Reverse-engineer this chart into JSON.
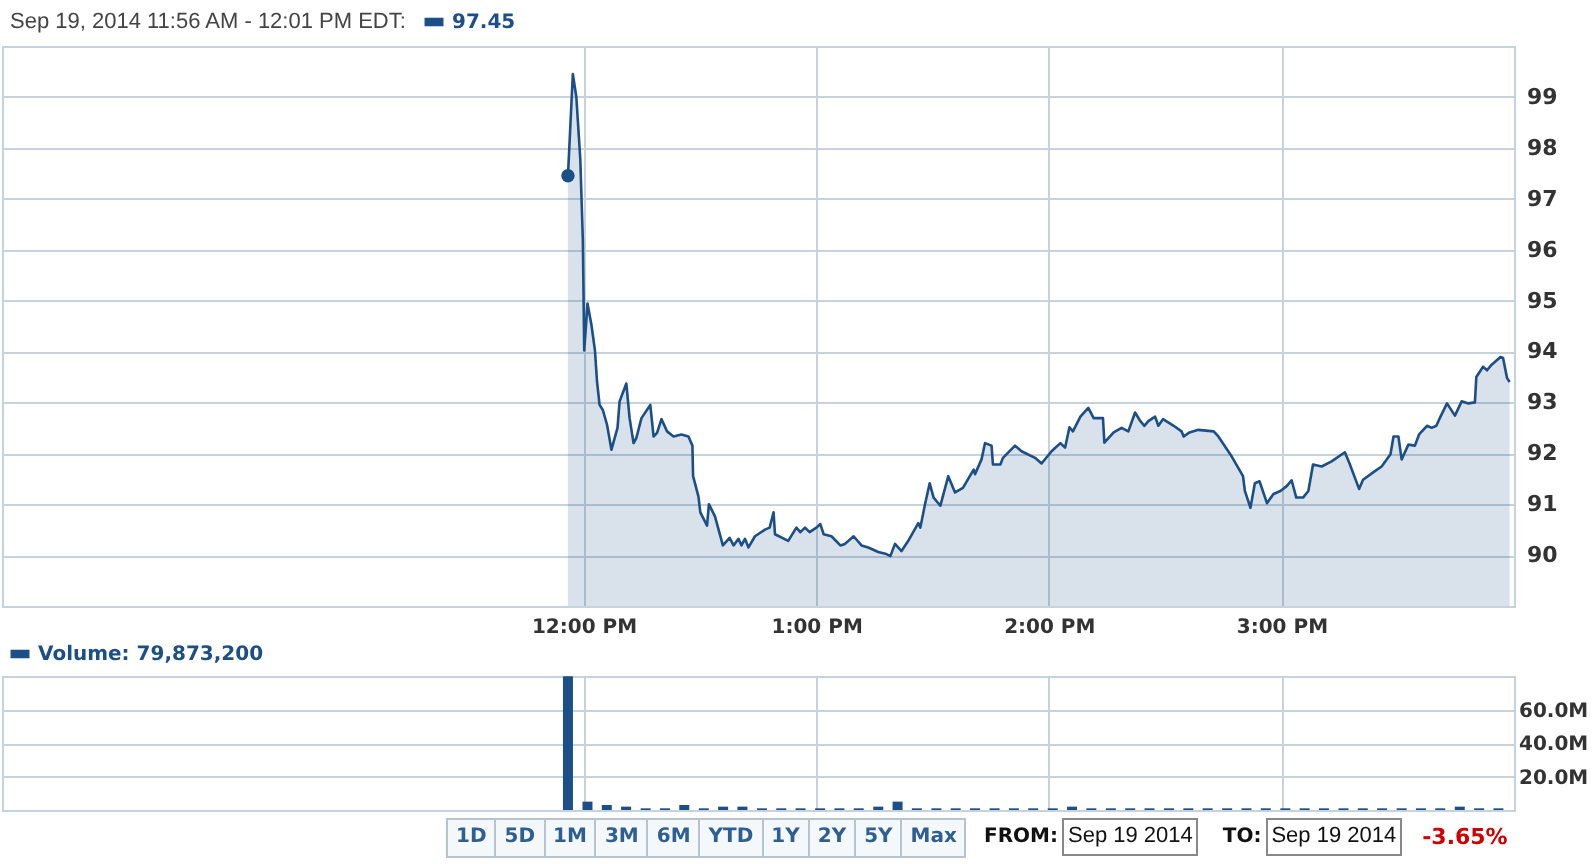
{
  "chart_data": [
    {
      "type": "area",
      "legend_title": "Sep 19, 2014 11:56 AM - 12:01 PM EDT:",
      "legend": "top left",
      "grid": true,
      "xlim": [
        9.5,
        16
      ],
      "xticks": [
        {
          "value": 12,
          "label": "12:00 PM"
        },
        {
          "value": 13,
          "label": "1:00 PM"
        },
        {
          "value": 14,
          "label": "2:00 PM"
        },
        {
          "value": 15,
          "label": "3:00 PM"
        }
      ],
      "ylim": [
        89,
        100
      ],
      "yticks": [
        90,
        91,
        92,
        93,
        94,
        95,
        96,
        97,
        98,
        99
      ],
      "series": [
        {
          "name": "97.45",
          "color": "#1c4f87",
          "x": [
            11.933,
            11.954,
            11.969,
            11.986,
            11.997,
            12.003,
            12.017,
            12.034,
            12.049,
            12.058,
            12.069,
            12.083,
            12.101,
            12.12,
            12.146,
            12.155,
            12.184,
            12.198,
            12.215,
            12.227,
            12.249,
            12.287,
            12.301,
            12.316,
            12.335,
            12.359,
            12.387,
            12.421,
            12.451,
            12.468,
            12.471,
            12.494,
            12.502,
            12.531,
            12.539,
            12.565,
            12.599,
            12.628,
            12.645,
            12.666,
            12.679,
            12.694,
            12.709,
            12.737,
            12.78,
            12.8,
            12.817,
            12.823,
            12.88,
            12.915,
            12.932,
            12.952,
            12.972,
            13.001,
            13.018,
            13.032,
            13.066,
            13.104,
            13.124,
            13.161,
            13.195,
            13.224,
            13.267,
            13.302,
            13.319,
            13.339,
            13.367,
            13.396,
            13.439,
            13.448,
            13.468,
            13.488,
            13.505,
            13.534,
            13.568,
            13.597,
            13.631,
            13.677,
            13.683,
            13.711,
            13.726,
            13.754,
            13.76,
            13.792,
            13.803,
            13.855,
            13.883,
            13.941,
            13.969,
            14.012,
            14.05,
            14.07,
            14.089,
            14.104,
            14.136,
            14.17,
            14.193,
            14.233,
            14.239,
            14.279,
            14.313,
            14.342,
            14.371,
            14.394,
            14.411,
            14.428,
            14.457,
            14.471,
            14.491,
            14.537,
            14.571,
            14.58,
            14.605,
            14.643,
            14.709,
            14.729,
            14.786,
            14.835,
            14.843,
            14.867,
            14.886,
            14.906,
            14.938,
            14.966,
            14.996,
            15.024,
            15.044,
            15.064,
            15.093,
            15.116,
            15.136,
            15.173,
            15.216,
            15.273,
            15.293,
            15.334,
            15.351,
            15.402,
            15.431,
            15.469,
            15.482,
            15.503,
            15.517,
            15.546,
            15.574,
            15.592,
            15.626,
            15.646,
            15.666,
            15.684,
            15.712,
            15.746,
            15.775,
            15.804,
            15.832,
            15.838,
            15.867,
            15.884,
            15.904,
            15.942,
            15.953,
            15.97,
            15.981
          ],
          "values": [
            97.45,
            99.45,
            99.0,
            97.78,
            96.2,
            94.02,
            94.94,
            94.52,
            94.02,
            93.41,
            92.95,
            92.85,
            92.56,
            92.07,
            92.5,
            93.02,
            93.37,
            92.69,
            92.2,
            92.3,
            92.69,
            92.95,
            92.33,
            92.4,
            92.67,
            92.43,
            92.33,
            92.37,
            92.33,
            92.15,
            91.55,
            91.15,
            90.84,
            90.58,
            91.0,
            90.76,
            90.19,
            90.34,
            90.19,
            90.32,
            90.19,
            90.32,
            90.15,
            90.37,
            90.5,
            90.54,
            90.84,
            90.41,
            90.28,
            90.54,
            90.45,
            90.54,
            90.45,
            90.54,
            90.61,
            90.41,
            90.37,
            90.19,
            90.22,
            90.37,
            90.19,
            90.15,
            90.06,
            90.02,
            89.98,
            90.22,
            90.08,
            90.28,
            90.63,
            90.54,
            91.0,
            91.41,
            91.13,
            90.97,
            91.55,
            91.23,
            91.32,
            91.68,
            91.59,
            91.88,
            92.2,
            92.15,
            91.78,
            91.78,
            91.91,
            92.15,
            92.04,
            91.91,
            91.8,
            92.04,
            92.2,
            92.11,
            92.51,
            92.43,
            92.72,
            92.89,
            92.69,
            92.69,
            92.21,
            92.41,
            92.5,
            92.43,
            92.8,
            92.63,
            92.54,
            92.63,
            92.72,
            92.54,
            92.67,
            92.54,
            92.43,
            92.33,
            92.41,
            92.46,
            92.43,
            92.33,
            91.94,
            91.55,
            91.26,
            90.93,
            91.41,
            91.45,
            91.02,
            91.2,
            91.26,
            91.36,
            91.47,
            91.13,
            91.13,
            91.26,
            91.78,
            91.74,
            91.84,
            92.02,
            91.8,
            91.3,
            91.48,
            91.65,
            91.74,
            91.98,
            92.33,
            92.33,
            91.88,
            92.17,
            92.15,
            92.37,
            92.54,
            92.5,
            92.54,
            92.72,
            92.98,
            92.74,
            93.02,
            92.98,
            93.0,
            93.5,
            93.7,
            93.63,
            93.74,
            93.89,
            93.87,
            93.48,
            93.4
          ]
        },
        {
          "type": "scatter",
          "color": "#1c4f87",
          "x": [
            11.933
          ],
          "values": [
            97.45
          ]
        }
      ]
    },
    {
      "type": "bar",
      "legend": "top left",
      "grid": true,
      "tick_labels": "y",
      "xlim": [
        9.5,
        16
      ],
      "xticks": [
        {
          "value": 12,
          "label": null
        },
        {
          "value": 13,
          "label": null
        },
        {
          "value": 14,
          "label": null
        },
        {
          "value": 15,
          "label": null
        }
      ],
      "ylim": [
        0,
        80
      ],
      "yticks": [
        {
          "value": 20,
          "label": "20.0M"
        },
        {
          "value": 40,
          "label": "40.0M"
        },
        {
          "value": 60,
          "label": "60.0M"
        }
      ],
      "series": [
        {
          "name": "Volume: 79,873,200",
          "color": "#1c4f87",
          "x": [
            11.933,
            12.017,
            12.1,
            12.183,
            12.267,
            12.35,
            12.433,
            12.517,
            12.6,
            12.683,
            12.767,
            12.85,
            12.933,
            13.017,
            13.1,
            13.183,
            13.267,
            13.35,
            13.433,
            13.517,
            13.6,
            13.683,
            13.767,
            13.85,
            13.933,
            14.017,
            14.1,
            14.183,
            14.267,
            14.35,
            14.433,
            14.517,
            14.6,
            14.683,
            14.767,
            14.85,
            14.933,
            15.017,
            15.1,
            15.183,
            15.267,
            15.35,
            15.433,
            15.517,
            15.6,
            15.683,
            15.767,
            15.85,
            15.933
          ],
          "values": [
            79.8732,
            5,
            3,
            2,
            1,
            1,
            3,
            1,
            2,
            2,
            1,
            1,
            1,
            1,
            1,
            1,
            2,
            5,
            1,
            1,
            1,
            1,
            1,
            1,
            1,
            1,
            2,
            1,
            1,
            1,
            1,
            1,
            1,
            1,
            1,
            1,
            1,
            1,
            1,
            1,
            1,
            1,
            1,
            1,
            1,
            1,
            2,
            1,
            1
          ]
        }
      ]
    },
    {
      "type": "other",
      "categories": [
        "1D",
        "5D",
        "1M",
        "3M",
        "6M",
        "YTD",
        "1Y",
        "2Y",
        "5Y",
        "Max"
      ],
      "annotations": [
        "FROM:",
        "Sep 19 2014",
        "TO:",
        "Sep 19 2014",
        "-3.65%"
      ]
    }
  ]
}
